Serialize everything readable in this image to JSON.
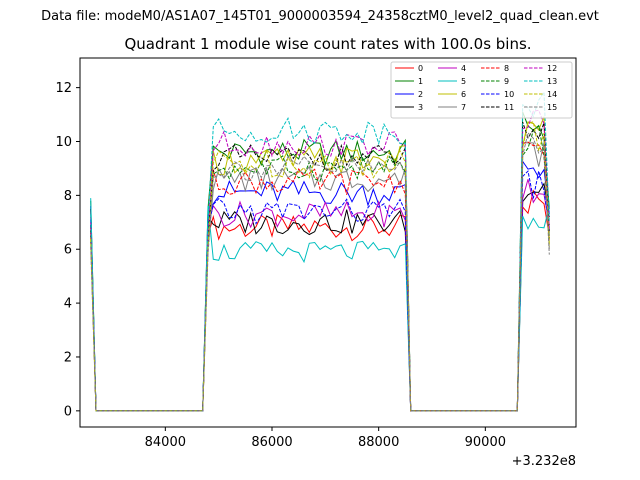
{
  "chart_data": {
    "type": "line",
    "suptitle": "Data file: modeM0/AS1A07_145T01_9000003594_24358cztM0_level2_quad_clean.evt",
    "title": "Quadrant 1 module wise count rates with 100.0s bins.",
    "xlabel": "",
    "ylabel": "",
    "x_offset_label": "+3.232e8",
    "xlim": [
      82400,
      91700
    ],
    "ylim": [
      -0.6,
      13.1
    ],
    "xticks": [
      84000,
      86000,
      88000,
      90000
    ],
    "xtick_labels": [
      "84000",
      "86000",
      "88000",
      "90000"
    ],
    "yticks": [
      0,
      2,
      4,
      6,
      8,
      10,
      12
    ],
    "ytick_labels": [
      "0",
      "2",
      "4",
      "6",
      "8",
      "10",
      "12"
    ],
    "grid": false,
    "legend_position": "top-right",
    "segments": [
      {
        "start": 82600,
        "end": 82700
      },
      {
        "start": 84800,
        "end": 88500
      },
      {
        "start": 90600,
        "end": 91200
      }
    ],
    "series": [
      {
        "name": "0",
        "color": "#ff0000",
        "dash": "solid",
        "level": 6.8,
        "edge": 6.5,
        "jitter": 0.3
      },
      {
        "name": "1",
        "color": "#008000",
        "dash": "solid",
        "level": 9.6,
        "edge": 7.5,
        "jitter": 0.3
      },
      {
        "name": "2",
        "color": "#0000ff",
        "dash": "solid",
        "level": 8.1,
        "edge": 7.3,
        "jitter": 0.3
      },
      {
        "name": "3",
        "color": "#000000",
        "dash": "solid",
        "level": 7.0,
        "edge": 7.2,
        "jitter": 0.3
      },
      {
        "name": "4",
        "color": "#bf00bf",
        "dash": "solid",
        "level": 7.3,
        "edge": 6.9,
        "jitter": 0.3
      },
      {
        "name": "5",
        "color": "#00bfbf",
        "dash": "solid",
        "level": 5.9,
        "edge": 7.6,
        "jitter": 0.25
      },
      {
        "name": "6",
        "color": "#bfbf00",
        "dash": "solid",
        "level": 9.3,
        "edge": 6.2,
        "jitter": 0.35
      },
      {
        "name": "7",
        "color": "#808080",
        "dash": "solid",
        "level": 8.6,
        "edge": 6.0,
        "jitter": 0.3
      },
      {
        "name": "8",
        "color": "#ff0000",
        "dash": "dashed",
        "level": 8.5,
        "edge": 6.3,
        "jitter": 0.3
      },
      {
        "name": "9",
        "color": "#008000",
        "dash": "dashed",
        "level": 9.0,
        "edge": 6.4,
        "jitter": 0.3
      },
      {
        "name": "10",
        "color": "#0000ff",
        "dash": "dashed",
        "level": 7.4,
        "edge": 6.8,
        "jitter": 0.3
      },
      {
        "name": "11",
        "color": "#000000",
        "dash": "dashed",
        "level": 9.4,
        "edge": 6.6,
        "jitter": 0.3
      },
      {
        "name": "12",
        "color": "#bf00bf",
        "dash": "dashed",
        "level": 9.9,
        "edge": 6.7,
        "jitter": 0.3
      },
      {
        "name": "13",
        "color": "#00bfbf",
        "dash": "dashed",
        "level": 10.4,
        "edge": 7.0,
        "jitter": 0.3
      },
      {
        "name": "14",
        "color": "#bfbf00",
        "dash": "dashed",
        "level": 9.2,
        "edge": 6.1,
        "jitter": 0.35
      },
      {
        "name": "15",
        "color": "#808080",
        "dash": "dashed",
        "level": 9.0,
        "edge": 5.8,
        "jitter": 0.3
      }
    ]
  }
}
